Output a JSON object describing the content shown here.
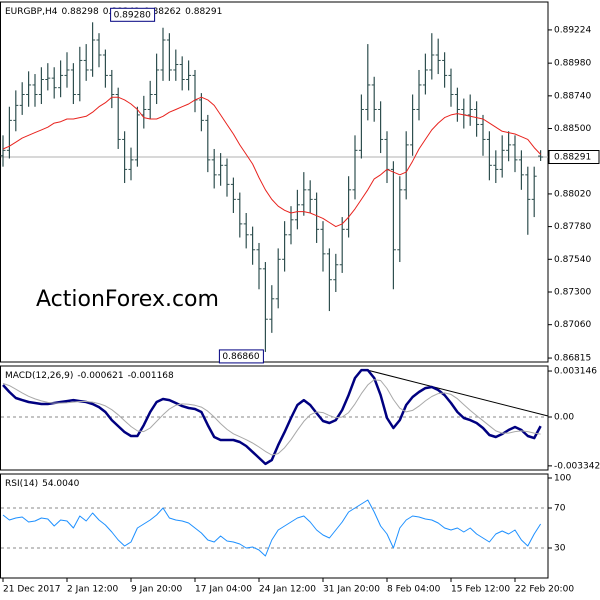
{
  "chart_data": [
    {
      "type": "ohlc",
      "title": "EURGBP,H4",
      "watermark": "ActionForex.com",
      "color": "#2f4f4f",
      "categories": [
        "21 Dec 2017",
        null,
        null,
        null,
        null,
        null,
        null,
        null,
        null,
        null,
        "2 Jan 12:00",
        null,
        null,
        null,
        null,
        null,
        null,
        null,
        null,
        null,
        "9 Jan 20:00",
        null,
        null,
        null,
        null,
        null,
        null,
        null,
        null,
        null,
        "17 Jan 04:00",
        null,
        null,
        null,
        null,
        null,
        null,
        null,
        null,
        null,
        "24 Jan 12:00",
        null,
        null,
        null,
        null,
        null,
        null,
        null,
        null,
        null,
        "31 Jan 20:00",
        null,
        null,
        null,
        null,
        null,
        null,
        null,
        null,
        null,
        "8 Feb 04:00",
        null,
        null,
        null,
        null,
        null,
        null,
        null,
        null,
        null,
        "15 Feb 12:00",
        null,
        null,
        null,
        null,
        null,
        null,
        null,
        null,
        null,
        "22 Feb 20:00",
        null,
        null,
        null,
        null
      ],
      "open": [
        0.883,
        0.8834,
        0.8856,
        0.8867,
        0.8875,
        0.8882,
        0.8875,
        0.8886,
        0.8887,
        0.888,
        0.8889,
        0.8893,
        0.8875,
        0.89,
        0.8893,
        0.8915,
        0.8904,
        0.8889,
        0.8875,
        0.8842,
        0.882,
        0.8827,
        0.886,
        0.8864,
        0.8875,
        0.8893,
        0.8915,
        0.8893,
        0.8897,
        0.8886,
        0.8889,
        0.8871,
        0.8856,
        0.8827,
        0.8816,
        0.8823,
        0.8809,
        0.8798,
        0.878,
        0.8772,
        0.8761,
        0.8747,
        0.871,
        0.8725,
        0.8754,
        0.8772,
        0.8783,
        0.8794,
        0.8805,
        0.8798,
        0.8776,
        0.8758,
        0.8739,
        0.875,
        0.8776,
        0.8805,
        0.8834,
        0.8864,
        0.8882,
        0.8864,
        0.8842,
        0.882,
        0.8761,
        0.8805,
        0.8838,
        0.8864,
        0.8882,
        0.8893,
        0.8904,
        0.89,
        0.8889,
        0.8875,
        0.8864,
        0.886,
        0.8864,
        0.8853,
        0.8842,
        0.8823,
        0.882,
        0.8834,
        0.8838,
        0.8827,
        0.8816,
        0.8798,
        0.88298
      ],
      "high": [
        0.8845,
        0.8866,
        0.8878,
        0.8884,
        0.8892,
        0.889,
        0.8895,
        0.8898,
        0.8895,
        0.89,
        0.8906,
        0.8898,
        0.891,
        0.8912,
        0.8928,
        0.892,
        0.8908,
        0.8893,
        0.888,
        0.8848,
        0.8836,
        0.8866,
        0.8874,
        0.8885,
        0.8905,
        0.8924,
        0.892,
        0.8908,
        0.8903,
        0.89,
        0.8893,
        0.8876,
        0.886,
        0.8835,
        0.8832,
        0.8828,
        0.8814,
        0.8803,
        0.8788,
        0.8778,
        0.8766,
        0.8752,
        0.8735,
        0.8762,
        0.8782,
        0.8793,
        0.8805,
        0.8818,
        0.8812,
        0.8803,
        0.8782,
        0.8762,
        0.8758,
        0.8785,
        0.8815,
        0.8845,
        0.8875,
        0.8912,
        0.8888,
        0.887,
        0.8848,
        0.8826,
        0.8815,
        0.8848,
        0.8875,
        0.8893,
        0.8905,
        0.892,
        0.8916,
        0.8906,
        0.8894,
        0.888,
        0.8872,
        0.8875,
        0.887,
        0.886,
        0.8848,
        0.8834,
        0.8845,
        0.8848,
        0.8845,
        0.8834,
        0.8822,
        0.8822,
        0.88341
      ],
      "low": [
        0.8822,
        0.8828,
        0.8848,
        0.886,
        0.8866,
        0.8866,
        0.8868,
        0.8878,
        0.8872,
        0.8873,
        0.888,
        0.8868,
        0.887,
        0.8885,
        0.8888,
        0.8895,
        0.888,
        0.8865,
        0.8835,
        0.881,
        0.8812,
        0.8822,
        0.885,
        0.8857,
        0.8868,
        0.8885,
        0.8885,
        0.8885,
        0.8878,
        0.8878,
        0.8862,
        0.8848,
        0.8818,
        0.8806,
        0.8808,
        0.88,
        0.8788,
        0.877,
        0.8762,
        0.875,
        0.8732,
        0.8686,
        0.87,
        0.8718,
        0.8745,
        0.8765,
        0.8776,
        0.8786,
        0.8788,
        0.8766,
        0.8745,
        0.8716,
        0.873,
        0.8744,
        0.877,
        0.8798,
        0.8828,
        0.8856,
        0.8855,
        0.8832,
        0.881,
        0.8732,
        0.8752,
        0.8798,
        0.883,
        0.8856,
        0.8875,
        0.8886,
        0.889,
        0.888,
        0.8866,
        0.8855,
        0.885,
        0.8852,
        0.8844,
        0.883,
        0.8812,
        0.881,
        0.8814,
        0.8826,
        0.8818,
        0.8805,
        0.8772,
        0.8785,
        0.88262
      ],
      "close": [
        0.8834,
        0.8856,
        0.8867,
        0.8875,
        0.8882,
        0.8875,
        0.8886,
        0.8887,
        0.888,
        0.8889,
        0.8893,
        0.8875,
        0.89,
        0.8893,
        0.8915,
        0.8904,
        0.8889,
        0.8875,
        0.8842,
        0.882,
        0.8827,
        0.886,
        0.8864,
        0.8875,
        0.8893,
        0.8915,
        0.8893,
        0.8897,
        0.8886,
        0.8889,
        0.8871,
        0.8856,
        0.8827,
        0.8816,
        0.8823,
        0.8809,
        0.8798,
        0.878,
        0.8772,
        0.8761,
        0.8747,
        0.871,
        0.8725,
        0.8754,
        0.8772,
        0.8783,
        0.8794,
        0.8805,
        0.8798,
        0.8776,
        0.8758,
        0.8739,
        0.875,
        0.8776,
        0.8805,
        0.8834,
        0.8864,
        0.8882,
        0.8864,
        0.8842,
        0.882,
        0.8761,
        0.8805,
        0.8838,
        0.8864,
        0.8882,
        0.8893,
        0.8904,
        0.89,
        0.8889,
        0.8875,
        0.8864,
        0.886,
        0.8864,
        0.8853,
        0.8842,
        0.8823,
        0.882,
        0.8834,
        0.8838,
        0.8827,
        0.8816,
        0.8798,
        0.8815,
        0.88291
      ],
      "series": [
        {
          "color": "#e8231e",
          "width": 1,
          "values": [
            0.8835,
            0.8837,
            0.884,
            0.8843,
            0.8845,
            0.8847,
            0.8849,
            0.8851,
            0.8854,
            0.8855,
            0.8857,
            0.8857,
            0.8858,
            0.8859,
            0.8862,
            0.8866,
            0.8869,
            0.8873,
            0.8873,
            0.8871,
            0.8868,
            0.8864,
            0.8858,
            0.8857,
            0.8857,
            0.8859,
            0.8862,
            0.8864,
            0.8866,
            0.8868,
            0.8871,
            0.8873,
            0.8871,
            0.8867,
            0.886,
            0.8853,
            0.8846,
            0.8838,
            0.8831,
            0.8824,
            0.8814,
            0.8805,
            0.8798,
            0.8793,
            0.879,
            0.8788,
            0.8789,
            0.8789,
            0.8788,
            0.8786,
            0.8784,
            0.8781,
            0.8778,
            0.878,
            0.8785,
            0.8791,
            0.8798,
            0.8805,
            0.8813,
            0.8816,
            0.882,
            0.8818,
            0.8816,
            0.8818,
            0.8826,
            0.8835,
            0.8842,
            0.8849,
            0.8854,
            0.8858,
            0.886,
            0.8861,
            0.886,
            0.8859,
            0.8858,
            0.8857,
            0.8854,
            0.8851,
            0.8848,
            0.8847,
            0.8846,
            0.8844,
            0.8842,
            0.8836,
            0.8831
          ]
        }
      ],
      "annotations": [
        {
          "index": 14,
          "value": 0.8928,
          "label": "0.89280"
        },
        {
          "index": 41,
          "value": 0.8686,
          "label": "0.86860"
        }
      ],
      "ylim": [
        0.86786,
        0.89429
      ],
      "yticks": [
        0.89224,
        {
          "value": 0.8898,
          "label": "0.88980"
        },
        {
          "value": 0.8874,
          "label": "0.88740"
        },
        {
          "value": 0.885,
          "label": "0.88500"
        },
        {
          "value": 0.8802,
          "label": "0.88020"
        },
        {
          "value": 0.8778,
          "label": "0.87780"
        },
        {
          "value": 0.8754,
          "label": "0.87540"
        },
        {
          "value": 0.873,
          "label": "0.87300"
        },
        {
          "value": 0.8706,
          "label": "0.87060"
        },
        0.86815
      ]
    },
    {
      "type": "line",
      "title": "MACD(12,26,9)",
      "series": [
        {
          "color": "#000080",
          "width": 2.5,
          "values": [
            0.00219,
            0.00171,
            0.0013,
            0.00116,
            0.00103,
            0.00096,
            0.00089,
            0.00089,
            0.00096,
            0.00103,
            0.00109,
            0.00116,
            0.00109,
            0.00103,
            0.00089,
            0.00068,
            0.00034,
            -0.00021,
            -0.00062,
            -0.00103,
            -0.0013,
            -0.0013,
            -0.00055,
            0.00034,
            0.00103,
            0.00123,
            0.00116,
            0.00096,
            0.00075,
            0.00062,
            0.00055,
            0.00034,
            -0.00055,
            -0.00137,
            -0.00157,
            -0.00157,
            -0.00157,
            -0.00171,
            -0.00198,
            -0.00239,
            -0.0028,
            -0.00321,
            -0.00294,
            -0.00192,
            -0.00103,
            -7e-05,
            0.00082,
            0.00116,
            0.00082,
            0.00027,
            -0.00027,
            -0.00041,
            -0.00021,
            0.00048,
            0.0015,
            0.00267,
            0.00321,
            0.00321,
            0.00267,
            0.0015,
            -7e-05,
            -0.00075,
            -0.00021,
            0.00082,
            0.00137,
            0.00171,
            0.00198,
            0.00205,
            0.00185,
            0.0015,
            0.00096,
            0.00034,
            -7e-05,
            -0.00021,
            -0.00041,
            -0.00075,
            -0.00123,
            -0.00137,
            -0.00116,
            -0.00089,
            -0.00068,
            -0.00089,
            -0.0013,
            -0.00144,
            -0.000621
          ]
        },
        {
          "color": "#a9a9a9",
          "width": 1,
          "values": [
            0.0023,
            0.00215,
            0.0019,
            0.00165,
            0.00142,
            0.00124,
            0.0011,
            0.001,
            0.00095,
            0.00095,
            0.00098,
            0.00102,
            0.00106,
            0.00106,
            0.00102,
            0.00092,
            0.00076,
            0.0005,
            0.00015,
            -0.00025,
            -0.00065,
            -0.00095,
            -0.001,
            -0.00075,
            -0.0003,
            0.00015,
            0.00055,
            0.0008,
            0.0009,
            0.00088,
            0.0008,
            0.00068,
            0.0004,
            0,
            -0.00045,
            -0.00085,
            -0.00115,
            -0.00135,
            -0.00155,
            -0.00178,
            -0.00205,
            -0.00235,
            -0.0026,
            -0.0025,
            -0.0021,
            -0.00155,
            -0.0009,
            -0.0003,
            0.00015,
            0.00035,
            0.0003,
            0.0001,
            -5e-05,
            0,
            0.0003,
            0.0009,
            0.0016,
            0.0022,
            0.00255,
            0.0025,
            0.00195,
            0.0012,
            0.0006,
            0.00035,
            0.00045,
            0.00075,
            0.0011,
            0.0014,
            0.0016,
            0.00165,
            0.00155,
            0.00125,
            0.00085,
            0.00045,
            0.0001,
            -0.00025,
            -0.0006,
            -0.00095,
            -0.0011,
            -0.0011,
            -0.001,
            -0.00095,
            -0.001,
            -0.0011,
            -0.001168
          ]
        }
      ],
      "levels": [
        0
      ],
      "ylim": [
        -0.003625,
        0.00349
      ],
      "yticks": [
        0.003146,
        {
          "value": 0,
          "label": "0.00"
        },
        -0.003342
      ]
    },
    {
      "type": "line",
      "title": "RSI(14)",
      "current": {
        "value": 54.004,
        "label": "54.0040"
      },
      "series": [
        {
          "color": "#1e90ff",
          "width": 1,
          "values": [
            63,
            58,
            60,
            61,
            56,
            57,
            60,
            59,
            52,
            58,
            57,
            50,
            62,
            57,
            65,
            58,
            53,
            46,
            38,
            32,
            36,
            50,
            54,
            58,
            63,
            70,
            60,
            58,
            57,
            55,
            50,
            45,
            38,
            36,
            42,
            37,
            36,
            34,
            30,
            31,
            28,
            22,
            38,
            48,
            52,
            56,
            60,
            62,
            56,
            48,
            43,
            40,
            48,
            56,
            66,
            70,
            74,
            78,
            66,
            52,
            44,
            30,
            50,
            58,
            62,
            61,
            59,
            58,
            55,
            50,
            48,
            50,
            46,
            50,
            44,
            40,
            36,
            44,
            47,
            44,
            48,
            38,
            32,
            44,
            54.004
          ]
        }
      ],
      "levels": [
        70,
        30
      ],
      "ylim": [
        0,
        104
      ],
      "yticks": [
        100,
        70,
        30
      ]
    }
  ]
}
